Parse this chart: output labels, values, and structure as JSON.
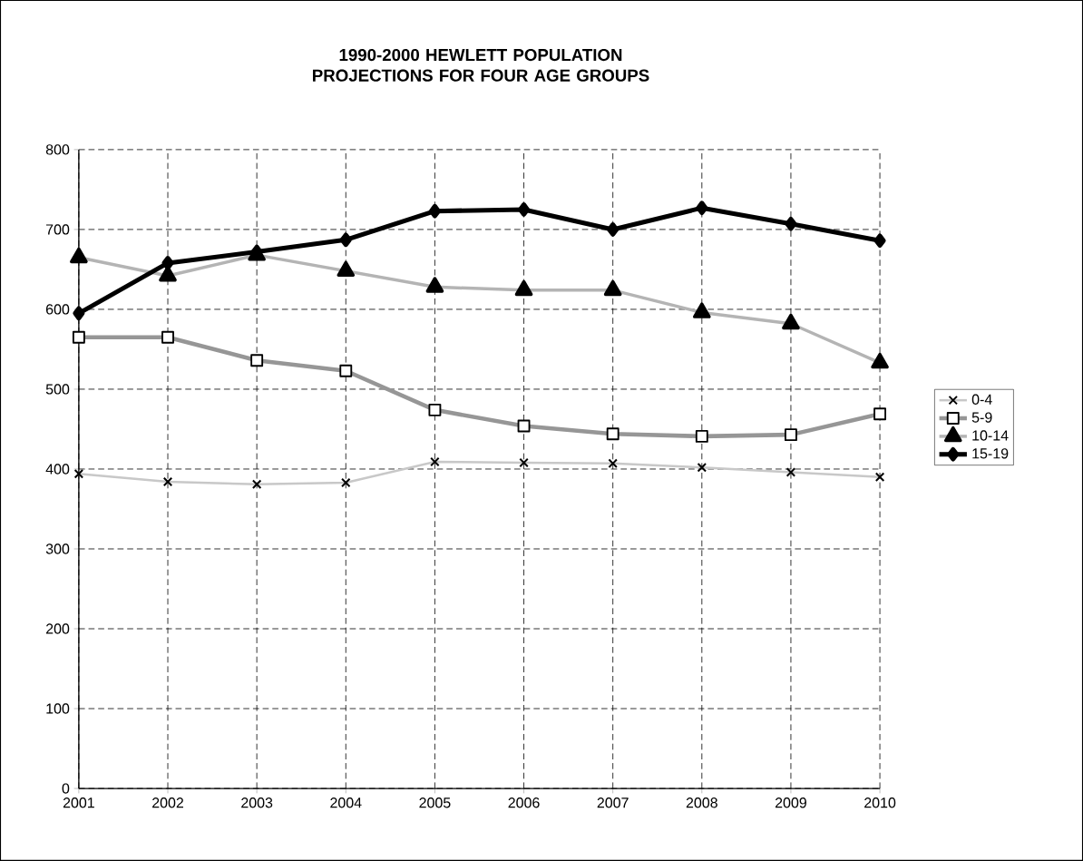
{
  "chart_data": {
    "type": "line",
    "title": "1990-2000 HEWLETT POPULATION PROJECTIONS FOR FOUR AGE GROUPS",
    "x": [
      2001,
      2002,
      2003,
      2004,
      2005,
      2006,
      2007,
      2008,
      2009,
      2010
    ],
    "xlim": [
      2001,
      2010
    ],
    "xticks": [
      2001,
      2002,
      2003,
      2004,
      2005,
      2006,
      2007,
      2008,
      2009,
      2010
    ],
    "ylim": [
      0,
      800
    ],
    "yticks": [
      0,
      100,
      200,
      300,
      400,
      500,
      600,
      700,
      800
    ],
    "grid": true,
    "legend": "right",
    "line_style": "solid",
    "series": [
      {
        "name": "0-4",
        "color": "#c8c8c8",
        "marker": "cross",
        "values": [
          394,
          384,
          381,
          383,
          409,
          408,
          407,
          402,
          396,
          390
        ]
      },
      {
        "name": "5-9",
        "color": "#969696",
        "marker": "square",
        "values": [
          565,
          565,
          536,
          523,
          474,
          454,
          444,
          441,
          443,
          469
        ]
      },
      {
        "name": "10-14",
        "color": "#b4b4b4",
        "marker": "triangle",
        "values": [
          665,
          642,
          668,
          648,
          628,
          624,
          624,
          596,
          582,
          533
        ]
      },
      {
        "name": "15-19",
        "color": "#000000",
        "marker": "diamond",
        "values": [
          595,
          658,
          672,
          687,
          723,
          725,
          700,
          727,
          707,
          686
        ]
      }
    ]
  }
}
